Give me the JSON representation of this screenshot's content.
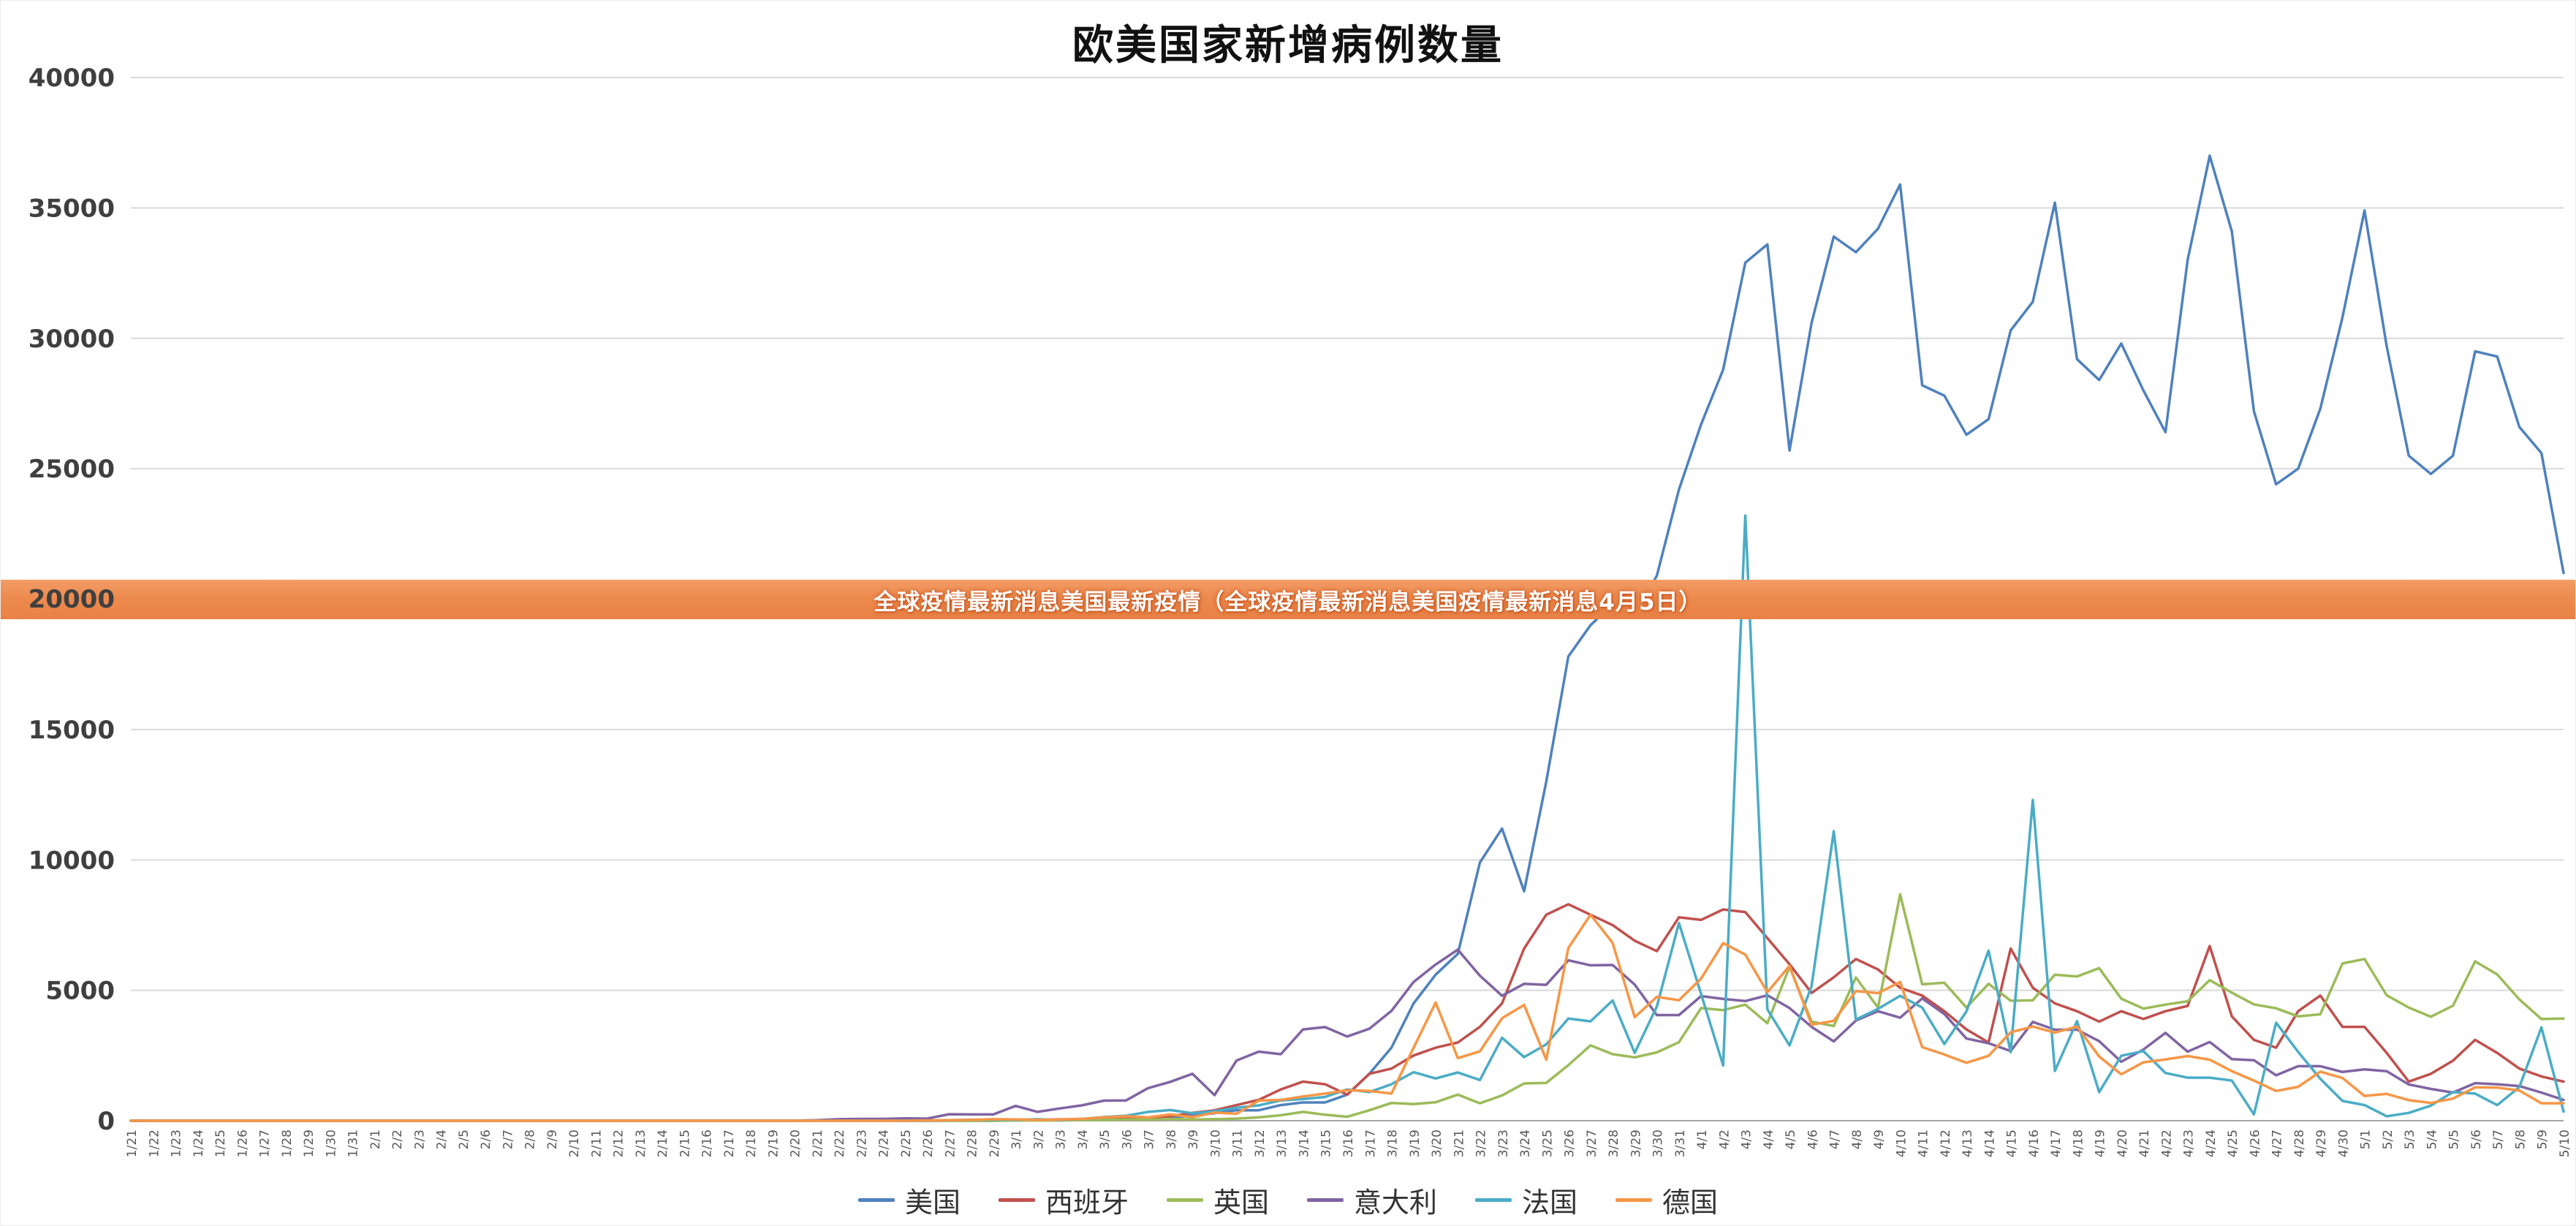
{
  "title": "欧美国家新增病例数量",
  "banner": {
    "text": "全球疫情最新消息美国最新疫情（全球疫情最新消息美国疫情最新消息4月5日）",
    "background": "#ed8b4f",
    "text_color": "#ffffff",
    "anchored_value": 20000
  },
  "chart_data": {
    "type": "line",
    "title": "欧美国家新增病例数量",
    "grid": true,
    "legend_position": "bottom",
    "ylim": [
      0,
      40000
    ],
    "y_ticks": [
      0,
      5000,
      10000,
      15000,
      20000,
      25000,
      30000,
      35000,
      40000
    ],
    "x": [
      "1/21",
      "1/22",
      "1/23",
      "1/24",
      "1/25",
      "1/26",
      "1/27",
      "1/28",
      "1/29",
      "1/30",
      "1/31",
      "2/1",
      "2/2",
      "2/3",
      "2/4",
      "2/5",
      "2/6",
      "2/7",
      "2/8",
      "2/9",
      "2/10",
      "2/11",
      "2/12",
      "2/13",
      "2/14",
      "2/15",
      "2/16",
      "2/17",
      "2/18",
      "2/19",
      "2/20",
      "2/21",
      "2/22",
      "2/23",
      "2/24",
      "2/25",
      "2/26",
      "2/27",
      "2/28",
      "2/29",
      "3/1",
      "3/2",
      "3/3",
      "3/4",
      "3/5",
      "3/6",
      "3/7",
      "3/8",
      "3/9",
      "3/10",
      "3/11",
      "3/12",
      "3/13",
      "3/14",
      "3/15",
      "3/16",
      "3/17",
      "3/18",
      "3/19",
      "3/20",
      "3/21",
      "3/22",
      "3/23",
      "3/24",
      "3/25",
      "3/26",
      "3/27",
      "3/28",
      "3/29",
      "3/30",
      "3/31",
      "4/1",
      "4/2",
      "4/3",
      "4/4",
      "4/5",
      "4/6",
      "4/7",
      "4/8",
      "4/9",
      "4/10",
      "4/11",
      "4/12",
      "4/13",
      "4/14",
      "4/15",
      "4/16",
      "4/17",
      "4/18",
      "4/19",
      "4/20",
      "4/21",
      "4/22",
      "4/23",
      "4/24",
      "4/25",
      "4/26",
      "4/27",
      "4/28",
      "4/29",
      "4/30",
      "5/1",
      "5/2",
      "5/3",
      "5/4",
      "5/5",
      "5/6",
      "5/7",
      "5/8",
      "5/9",
      "5/10"
    ],
    "series": [
      {
        "name": "美国",
        "color": "#4F81BD",
        "values": [
          0,
          0,
          0,
          0,
          0,
          0,
          0,
          0,
          0,
          0,
          0,
          0,
          0,
          0,
          0,
          0,
          0,
          0,
          0,
          0,
          0,
          0,
          0,
          0,
          0,
          0,
          0,
          0,
          0,
          0,
          0,
          0,
          0,
          0,
          0,
          0,
          0,
          0,
          0,
          0,
          20,
          20,
          30,
          30,
          80,
          100,
          120,
          120,
          200,
          290,
          400,
          400,
          600,
          700,
          700,
          1000,
          1800,
          2800,
          4500,
          5600,
          6400,
          9900,
          11200,
          8800,
          13000,
          17800,
          19000,
          19800,
          19400,
          20900,
          24200,
          26700,
          28800,
          32900,
          33600,
          25700,
          30600,
          33900,
          33300,
          34200,
          35900,
          28200,
          27800,
          26300,
          26900,
          30300,
          31400,
          35200,
          29200,
          28400,
          29800,
          28000,
          26400,
          33000,
          37000,
          34100,
          27200,
          24400,
          25000,
          27300,
          30800,
          34900,
          29700,
          25500,
          24800,
          25500,
          29500,
          29300,
          26600,
          25600,
          21000
        ]
      },
      {
        "name": "西班牙",
        "color": "#C0504D",
        "values": [
          0,
          0,
          0,
          0,
          0,
          0,
          0,
          0,
          0,
          0,
          0,
          0,
          0,
          0,
          0,
          0,
          0,
          0,
          0,
          0,
          0,
          0,
          0,
          0,
          0,
          0,
          0,
          0,
          0,
          0,
          0,
          0,
          0,
          0,
          0,
          0,
          10,
          15,
          20,
          30,
          40,
          40,
          50,
          70,
          60,
          100,
          120,
          170,
          300,
          400,
          600,
          800,
          1200,
          1500,
          1400,
          1000,
          1800,
          2000,
          2500,
          2800,
          3000,
          3600,
          4500,
          6600,
          7900,
          8300,
          7900,
          7500,
          6900,
          6500,
          7800,
          7700,
          8100,
          8000,
          7000,
          6000,
          4900,
          5500,
          6200,
          5800,
          5100,
          4800,
          4200,
          3500,
          3000,
          6600,
          5100,
          4500,
          4200,
          3800,
          4200,
          3900,
          4200,
          4400,
          6700,
          4000,
          3100,
          2800,
          4200,
          4800,
          3600,
          3600,
          2600,
          1500,
          1800,
          2300,
          3100,
          2600,
          2000,
          1700,
          1500
        ]
      },
      {
        "name": "英国",
        "color": "#9BBB59",
        "values": [
          0,
          0,
          0,
          0,
          0,
          0,
          0,
          0,
          0,
          0,
          0,
          0,
          0,
          0,
          0,
          0,
          0,
          0,
          0,
          0,
          0,
          0,
          0,
          0,
          0,
          0,
          0,
          0,
          0,
          0,
          0,
          0,
          0,
          0,
          0,
          0,
          0,
          0,
          0,
          0,
          10,
          10,
          10,
          30,
          30,
          50,
          40,
          70,
          50,
          60,
          80,
          130,
          210,
          340,
          230,
          150,
          400,
          680,
          640,
          710,
          1000,
          670,
          970,
          1430,
          1450,
          2130,
          2890,
          2550,
          2430,
          2620,
          3010,
          4320,
          4240,
          4450,
          3740,
          5900,
          3800,
          3630,
          5490,
          4340,
          8680,
          5230,
          5290,
          4340,
          5250,
          4600,
          4620,
          5600,
          5530,
          5850,
          4680,
          4300,
          4450,
          4580,
          5390,
          4910,
          4460,
          4310,
          4000,
          4080,
          6030,
          6200,
          4810,
          4340,
          3990,
          4410,
          6110,
          5610,
          4650,
          3900,
          3920
        ]
      },
      {
        "name": "意大利",
        "color": "#8064A2",
        "values": [
          0,
          0,
          0,
          0,
          0,
          0,
          0,
          0,
          0,
          0,
          0,
          0,
          0,
          0,
          0,
          0,
          0,
          0,
          0,
          0,
          0,
          0,
          0,
          0,
          0,
          0,
          0,
          0,
          0,
          0,
          0,
          20,
          60,
          70,
          70,
          90,
          80,
          250,
          240,
          240,
          570,
          340,
          470,
          590,
          770,
          780,
          1250,
          1490,
          1800,
          980,
          2310,
          2650,
          2550,
          3500,
          3590,
          3230,
          3530,
          4210,
          5320,
          5990,
          6560,
          5560,
          4790,
          5250,
          5210,
          6150,
          5960,
          5970,
          5220,
          4050,
          4050,
          4780,
          4670,
          4590,
          4810,
          4320,
          3600,
          3040,
          3840,
          4200,
          3950,
          4690,
          4090,
          3150,
          2970,
          2670,
          3790,
          3490,
          3490,
          3050,
          2260,
          2730,
          3370,
          2650,
          3020,
          2360,
          2320,
          1740,
          2090,
          2090,
          1870,
          1970,
          1900,
          1390,
          1220,
          1080,
          1440,
          1400,
          1330,
          1080,
          800
        ]
      },
      {
        "name": "法国",
        "color": "#4BACC6",
        "values": [
          0,
          0,
          0,
          0,
          0,
          0,
          0,
          0,
          0,
          0,
          0,
          0,
          0,
          0,
          0,
          0,
          0,
          0,
          0,
          0,
          0,
          0,
          0,
          0,
          0,
          0,
          0,
          0,
          0,
          0,
          0,
          0,
          0,
          0,
          0,
          0,
          0,
          20,
          40,
          40,
          30,
          60,
          20,
          70,
          140,
          190,
          340,
          410,
          290,
          370,
          500,
          590,
          780,
          830,
          910,
          1200,
          1100,
          1400,
          1860,
          1620,
          1850,
          1560,
          3180,
          2440,
          2930,
          3920,
          3810,
          4610,
          2600,
          4380,
          7580,
          4860,
          2120,
          23200,
          4270,
          2890,
          5170,
          11100,
          3880,
          4290,
          4790,
          4340,
          2940,
          4190,
          6520,
          2630,
          12300,
          1910,
          3820,
          1100,
          2490,
          2670,
          1830,
          1650,
          1650,
          1540,
          240,
          3760,
          2640,
          1610,
          760,
          600,
          170,
          300,
          580,
          1100,
          1040,
          600,
          1290,
          3580,
          350
        ]
      },
      {
        "name": "德国",
        "color": "#F79646",
        "values": [
          0,
          0,
          0,
          0,
          0,
          0,
          0,
          0,
          0,
          0,
          0,
          0,
          0,
          0,
          0,
          0,
          0,
          0,
          0,
          0,
          0,
          0,
          0,
          0,
          0,
          0,
          0,
          0,
          0,
          0,
          0,
          0,
          0,
          0,
          0,
          0,
          10,
          20,
          30,
          60,
          50,
          30,
          40,
          70,
          130,
          170,
          130,
          240,
          140,
          310,
          270,
          770,
          800,
          930,
          1040,
          1170,
          1140,
          1040,
          2800,
          4530,
          2400,
          2660,
          3930,
          4440,
          2340,
          6620,
          7900,
          6820,
          3970,
          4750,
          4620,
          5450,
          6810,
          6370,
          4930,
          5940,
          3680,
          3830,
          4970,
          4890,
          5320,
          2820,
          2540,
          2220,
          2490,
          3390,
          3610,
          3380,
          3610,
          2460,
          1780,
          2240,
          2350,
          2480,
          2340,
          1900,
          1540,
          1140,
          1300,
          1880,
          1640,
          950,
          1030,
          790,
          680,
          850,
          1280,
          1270,
          1160,
          670,
          670
        ]
      }
    ]
  }
}
